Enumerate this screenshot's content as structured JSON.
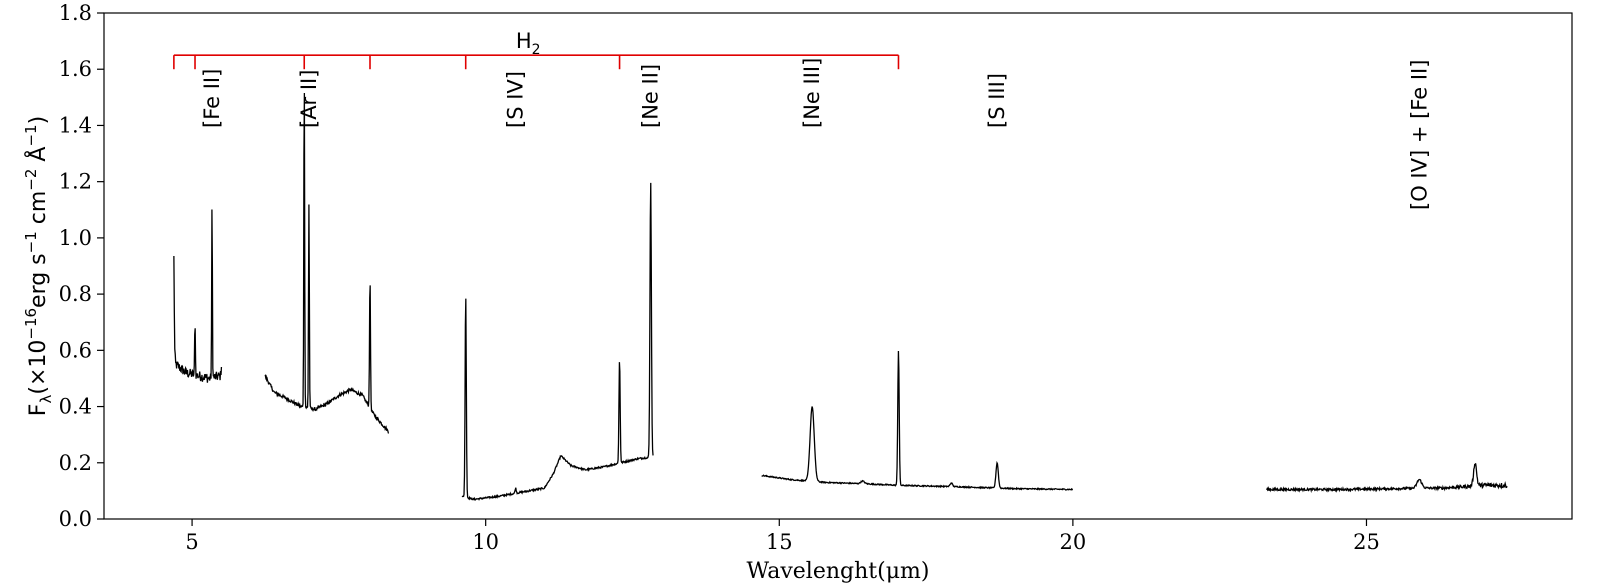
{
  "chart_data": {
    "type": "line",
    "title": "",
    "xlabel": "Wavelenght(μm)",
    "ylabel": "F_λ(×10^-16 erg s^-1 cm^-2 Å^-1)",
    "ylabel_parts": {
      "f": "F",
      "lambda_sub": "λ",
      "open": "(×10",
      "exp1": "−16",
      "erg": "erg s",
      "exp2": "−1",
      "cm": " cm",
      "exp3": "−2",
      "ang": " Å",
      "exp4": "−1",
      "close": ")"
    },
    "xlim": [
      3.5,
      28.5
    ],
    "ylim": [
      0.0,
      1.8
    ],
    "xticks": [
      5,
      10,
      15,
      20,
      25
    ],
    "yticks": [
      "0.0",
      "0.2",
      "0.4",
      "0.6",
      "0.8",
      "1.0",
      "1.2",
      "1.4",
      "1.6",
      "1.8"
    ],
    "line_color": "#000000",
    "h2_color": "#e00000",
    "h2": {
      "label": "H",
      "label_sub": "2",
      "bar_level": 1.65,
      "tick_bottom": 1.6,
      "x_range": [
        4.69,
        17.03
      ],
      "positions": [
        4.69,
        5.05,
        6.91,
        8.03,
        9.66,
        12.28,
        17.03
      ]
    },
    "line_ids": [
      {
        "label": "[Fe II]",
        "x": 5.34
      },
      {
        "label": "[Ar II]",
        "x": 6.99
      },
      {
        "label": "[S IV]",
        "x": 10.51
      },
      {
        "label": "[Ne II]",
        "x": 12.81
      },
      {
        "label": "[Ne III]",
        "x": 15.56
      },
      {
        "label": "[S III]",
        "x": 18.71
      },
      {
        "label": "[O IV] + [Fe II]",
        "x": 25.9
      }
    ],
    "series": [
      {
        "segment": "ch1A",
        "x_range": [
          4.69,
          5.5
        ],
        "continuum": [
          [
            4.69,
            0.63
          ],
          [
            4.72,
            0.55
          ],
          [
            4.9,
            0.52
          ],
          [
            5.1,
            0.51
          ],
          [
            5.3,
            0.5
          ],
          [
            5.5,
            0.51
          ]
        ],
        "noise": 0.018,
        "lines": [
          {
            "x": 4.69,
            "peak": 0.93,
            "w": 0.006
          },
          {
            "x": 5.05,
            "peak": 0.71,
            "w": 0.006
          },
          {
            "x": 5.34,
            "peak": 1.12,
            "w": 0.006
          },
          {
            "x": 5.5,
            "peak": 0.55,
            "w": 0.006
          }
        ]
      },
      {
        "segment": "ch1B",
        "x_range": [
          6.24,
          8.35
        ],
        "continuum": [
          [
            6.24,
            0.51
          ],
          [
            6.4,
            0.45
          ],
          [
            6.6,
            0.43
          ],
          [
            6.85,
            0.4
          ],
          [
            7.1,
            0.39
          ],
          [
            7.3,
            0.41
          ],
          [
            7.5,
            0.44
          ],
          [
            7.7,
            0.46
          ],
          [
            7.9,
            0.44
          ],
          [
            8.1,
            0.37
          ],
          [
            8.35,
            0.31
          ]
        ],
        "noise": 0.006,
        "lines": [
          {
            "x": 6.91,
            "peak": 1.59,
            "w": 0.007
          },
          {
            "x": 6.99,
            "peak": 1.12,
            "w": 0.007
          },
          {
            "x": 8.03,
            "peak": 0.86,
            "w": 0.008
          }
        ]
      },
      {
        "segment": "ch2",
        "x_range": [
          9.6,
          12.85
        ],
        "continuum": [
          [
            9.6,
            0.08
          ],
          [
            9.8,
            0.07
          ],
          [
            10.2,
            0.08
          ],
          [
            10.6,
            0.095
          ],
          [
            11.0,
            0.11
          ],
          [
            11.15,
            0.16
          ],
          [
            11.28,
            0.225
          ],
          [
            11.45,
            0.19
          ],
          [
            11.7,
            0.175
          ],
          [
            12.0,
            0.185
          ],
          [
            12.3,
            0.2
          ],
          [
            12.6,
            0.215
          ],
          [
            12.85,
            0.22
          ]
        ],
        "noise": 0.003,
        "lines": [
          {
            "x": 9.66,
            "peak": 0.8,
            "w": 0.01
          },
          {
            "x": 10.51,
            "peak": 0.11,
            "w": 0.01
          },
          {
            "x": 12.28,
            "peak": 0.57,
            "w": 0.01
          },
          {
            "x": 12.81,
            "peak": 1.2,
            "w": 0.012
          }
        ]
      },
      {
        "segment": "ch3",
        "x_range": [
          14.7,
          20.0
        ],
        "continuum": [
          [
            14.7,
            0.155
          ],
          [
            15.2,
            0.14
          ],
          [
            15.8,
            0.13
          ],
          [
            16.5,
            0.125
          ],
          [
            17.0,
            0.12
          ],
          [
            18.0,
            0.115
          ],
          [
            19.0,
            0.108
          ],
          [
            20.0,
            0.105
          ]
        ],
        "noise": 0.002,
        "lines": [
          {
            "x": 15.56,
            "peak": 0.4,
            "w": 0.035
          },
          {
            "x": 16.42,
            "peak": 0.135,
            "w": 0.03
          },
          {
            "x": 17.03,
            "peak": 0.6,
            "w": 0.012
          },
          {
            "x": 17.93,
            "peak": 0.128,
            "w": 0.02
          },
          {
            "x": 18.71,
            "peak": 0.2,
            "w": 0.02
          }
        ]
      },
      {
        "segment": "ch4",
        "x_range": [
          23.3,
          27.4
        ],
        "continuum": [
          [
            23.3,
            0.105
          ],
          [
            24.5,
            0.105
          ],
          [
            25.5,
            0.108
          ],
          [
            26.0,
            0.11
          ],
          [
            26.3,
            0.11
          ],
          [
            27.0,
            0.12
          ],
          [
            27.4,
            0.12
          ]
        ],
        "noise": 0.004,
        "noise_growth": 0.006,
        "lines": [
          {
            "x": 25.9,
            "peak": 0.14,
            "w": 0.04
          },
          {
            "x": 26.85,
            "peak": 0.2,
            "w": 0.025
          }
        ]
      }
    ]
  }
}
